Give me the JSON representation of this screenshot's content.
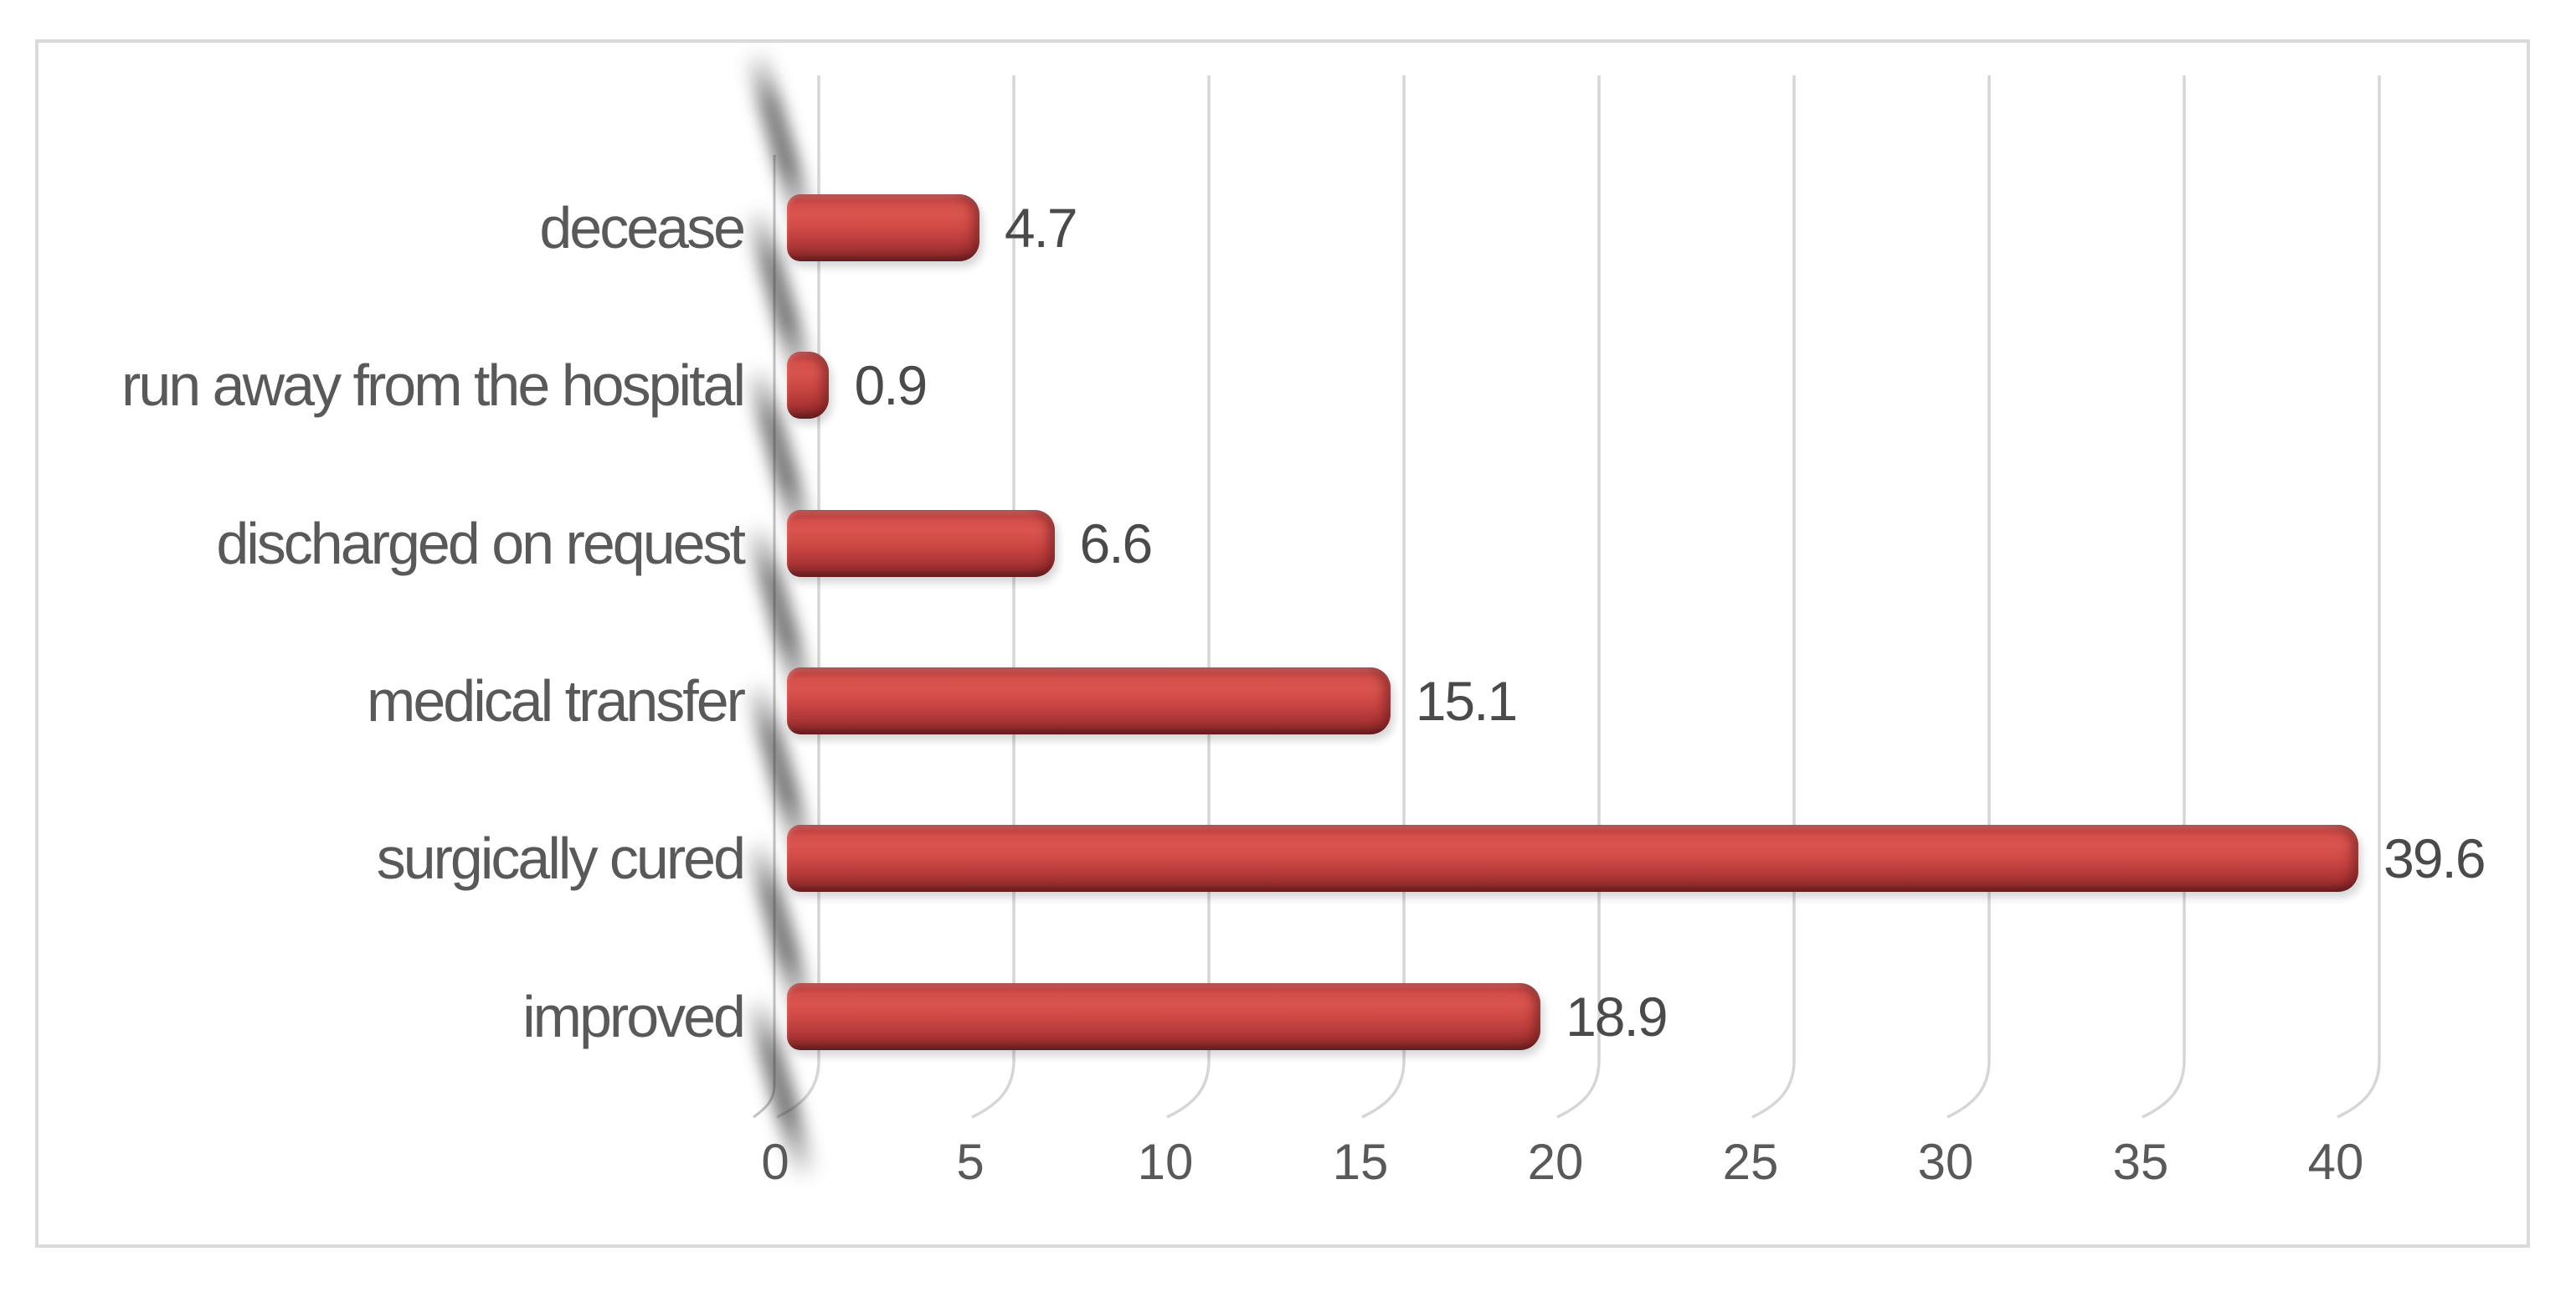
{
  "chart_data": {
    "type": "bar",
    "orientation": "horizontal",
    "title": "",
    "xlabel": "",
    "ylabel": "",
    "categories": [
      "decease",
      "run away from the hospital",
      "discharged on request",
      "medical transfer",
      "surgically cured",
      "improved"
    ],
    "values": [
      4.7,
      0.9,
      6.6,
      15.1,
      39.6,
      18.9
    ],
    "data_labels": [
      "4.7",
      "0.9",
      "6.6",
      "15.1",
      "39.6",
      "18.9"
    ],
    "x_ticks": [
      "0",
      "5",
      "10",
      "15",
      "20",
      "25",
      "30",
      "35",
      "40"
    ],
    "x_tick_values": [
      0,
      5,
      10,
      15,
      20,
      25,
      30,
      35,
      40
    ],
    "xlim": [
      0,
      43
    ],
    "grid": "vertical",
    "legend": false,
    "style": "excel-3d-bevel-bars"
  },
  "colors": {
    "bar_main": "#cf4946",
    "bar_highlight": "#da544e",
    "bar_shadow": "#922b2c",
    "bar_rim": "#651e21",
    "gridline": "#d6d6d6",
    "wall_line": "#c2c2c2",
    "frame_border": "#dadada",
    "category_text": "#595959",
    "tick_text": "#595959",
    "value_text": "#4a4a4a",
    "background": "#ffffff"
  }
}
